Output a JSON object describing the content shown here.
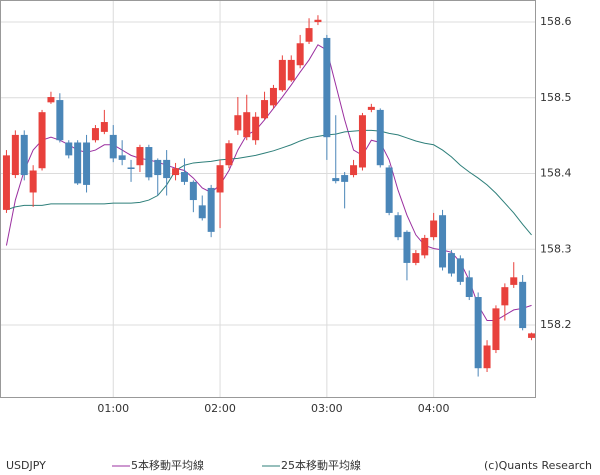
{
  "chart_data": {
    "type": "candlestick",
    "symbol": "USDJPY",
    "credit": "(c)Quants Research",
    "categories": [
      null,
      null,
      null,
      null,
      null,
      null,
      null,
      null,
      null,
      null,
      null,
      null,
      "01:00",
      null,
      null,
      null,
      null,
      null,
      null,
      null,
      null,
      null,
      null,
      null,
      "02:00",
      null,
      null,
      null,
      null,
      null,
      null,
      null,
      null,
      null,
      null,
      null,
      "03:00",
      null,
      null,
      null,
      null,
      null,
      null,
      null,
      null,
      null,
      null,
      null,
      "04:00",
      null,
      null,
      null,
      null,
      null,
      null,
      null,
      null,
      null,
      null,
      null
    ],
    "open": [
      158.352,
      158.398,
      158.451,
      158.375,
      158.407,
      158.494,
      158.497,
      158.441,
      158.441,
      158.441,
      158.444,
      158.455,
      158.451,
      158.424,
      158.408,
      158.411,
      158.435,
      158.418,
      158.418,
      158.398,
      158.402,
      158.389,
      158.358,
      158.381,
      158.375,
      158.411,
      158.457,
      158.448,
      158.444,
      158.473,
      158.49,
      158.51,
      158.523,
      158.543,
      158.574,
      158.6,
      158.579,
      158.394,
      158.398,
      158.398,
      158.408,
      158.484,
      158.484,
      158.408,
      158.345,
      158.323,
      158.282,
      158.292,
      158.316,
      158.345,
      158.295,
      158.288,
      158.263,
      158.237,
      158.143,
      158.167,
      158.226,
      158.253,
      158.257,
      158.183
    ],
    "high": [
      158.431,
      158.457,
      158.457,
      158.411,
      158.484,
      158.508,
      158.506,
      158.444,
      158.444,
      158.451,
      158.464,
      158.484,
      158.464,
      158.444,
      158.418,
      158.438,
      158.438,
      158.42,
      158.431,
      158.414,
      158.42,
      158.391,
      158.371,
      158.385,
      158.418,
      158.444,
      158.501,
      158.504,
      158.481,
      158.508,
      158.517,
      158.556,
      158.556,
      158.583,
      158.605,
      158.609,
      158.583,
      158.477,
      158.402,
      158.418,
      158.48,
      158.492,
      158.486,
      158.411,
      158.349,
      158.325,
      158.299,
      158.319,
      158.348,
      158.352,
      158.299,
      158.292,
      158.272,
      158.243,
      158.18,
      158.226,
      158.255,
      158.283,
      158.266,
      158.19
    ],
    "low": [
      158.348,
      158.394,
      158.391,
      158.356,
      158.404,
      158.492,
      158.441,
      158.42,
      158.385,
      158.375,
      158.441,
      158.452,
      158.415,
      158.411,
      158.389,
      158.402,
      158.391,
      158.371,
      158.371,
      158.391,
      158.385,
      158.349,
      158.338,
      158.316,
      158.328,
      158.407,
      158.451,
      158.444,
      158.438,
      158.471,
      158.486,
      158.508,
      158.521,
      158.539,
      158.571,
      158.596,
      158.418,
      158.387,
      158.354,
      158.395,
      158.404,
      158.481,
      158.408,
      158.345,
      158.312,
      158.259,
      158.279,
      158.288,
      158.312,
      158.272,
      158.264,
      158.253,
      158.233,
      158.132,
      158.138,
      158.163,
      158.206,
      158.249,
      158.193,
      158.18
    ],
    "close": [
      158.424,
      158.451,
      158.398,
      158.404,
      158.481,
      158.501,
      158.444,
      158.424,
      158.387,
      158.385,
      158.46,
      158.468,
      158.42,
      158.418,
      158.406,
      158.435,
      158.395,
      158.398,
      158.394,
      158.407,
      158.389,
      158.365,
      158.341,
      158.323,
      158.411,
      158.44,
      158.477,
      158.481,
      158.475,
      158.497,
      158.513,
      158.55,
      158.55,
      158.572,
      158.592,
      158.603,
      158.448,
      158.39,
      158.389,
      158.411,
      158.477,
      158.488,
      158.411,
      158.348,
      158.316,
      158.282,
      158.295,
      158.315,
      158.338,
      158.276,
      158.268,
      158.257,
      158.237,
      158.143,
      158.173,
      158.222,
      158.25,
      158.263,
      158.196,
      158.189
    ],
    "up_color": "#e8413c",
    "down_color": "#4a86b8",
    "series": [
      {
        "name": "5本移動平均線",
        "color": "#9b30a0",
        "values": [
          158.305,
          158.365,
          158.404,
          158.431,
          158.444,
          158.448,
          158.444,
          158.438,
          158.431,
          158.428,
          158.431,
          158.438,
          158.438,
          158.431,
          158.424,
          158.42,
          158.418,
          158.415,
          158.411,
          158.407,
          158.404,
          158.394,
          158.381,
          158.375,
          158.385,
          158.404,
          158.431,
          158.451,
          158.457,
          158.471,
          158.486,
          158.501,
          158.517,
          158.534,
          158.55,
          158.57,
          158.563,
          158.517,
          158.471,
          158.431,
          158.424,
          158.444,
          158.441,
          158.418,
          158.378,
          158.345,
          158.319,
          158.305,
          158.301,
          158.299,
          158.296,
          158.283,
          158.259,
          158.226,
          158.206,
          158.206,
          158.213,
          158.22,
          158.222,
          158.226
        ]
      },
      {
        "name": "25本移動平均線",
        "color": "#2e7f7a",
        "values": [
          158.352,
          158.356,
          158.358,
          158.358,
          158.358,
          158.36,
          158.36,
          158.36,
          158.36,
          158.36,
          158.36,
          158.36,
          158.361,
          158.361,
          158.361,
          158.362,
          158.365,
          158.371,
          158.385,
          158.404,
          158.411,
          158.414,
          158.415,
          158.416,
          158.418,
          158.419,
          158.42,
          158.422,
          158.424,
          158.427,
          158.43,
          158.434,
          158.438,
          158.443,
          158.447,
          158.449,
          158.451,
          158.452,
          158.455,
          158.456,
          158.457,
          158.457,
          158.456,
          158.453,
          158.451,
          158.447,
          158.443,
          158.44,
          158.438,
          158.431,
          158.422,
          158.411,
          158.402,
          158.394,
          158.385,
          158.374,
          158.361,
          158.348,
          158.333,
          158.319
        ]
      }
    ],
    "ylim": [
      158.105,
      158.6225
    ],
    "yticks": [
      158.2,
      158.3,
      158.4,
      158.5,
      158.6
    ],
    "grid": true
  }
}
